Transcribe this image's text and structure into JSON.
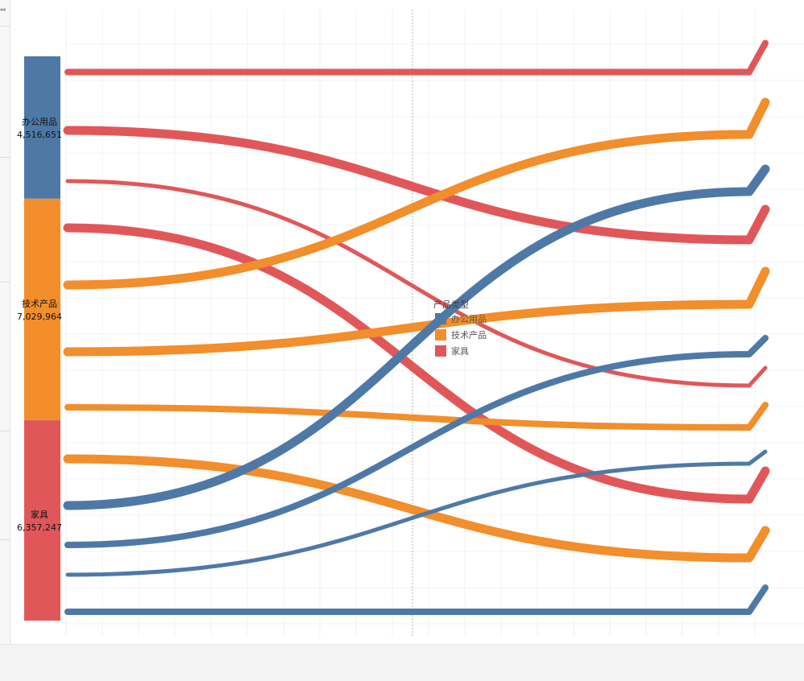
{
  "colors": {
    "office": "#4e79a7",
    "tech": "#f28e2b",
    "furniture": "#e15759"
  },
  "strip_icon": "close-icon",
  "legend": {
    "title": "产品类型",
    "items": [
      {
        "label": "办公用品",
        "color": "#4e79a7"
      },
      {
        "label": "技术产品",
        "color": "#f28e2b"
      },
      {
        "label": "家具",
        "color": "#e15759"
      }
    ]
  },
  "chart_data": {
    "type": "sankey",
    "stacked_bar": [
      {
        "name": "办公用品",
        "value": 4516651,
        "value_label": "4,516,651",
        "color": "#4e79a7"
      },
      {
        "name": "技术产品",
        "value": 7029964,
        "value_label": "7,029,964",
        "color": "#f28e2b"
      },
      {
        "name": "家具",
        "value": 6357247,
        "value_label": "6,357,247",
        "color": "#e15759"
      }
    ],
    "flows": [
      {
        "category": "家具",
        "weight": "medium",
        "start_rank": 1,
        "end_rank": 1
      },
      {
        "category": "家具",
        "weight": "thick",
        "start_rank": 2,
        "end_rank": 4
      },
      {
        "category": "家具",
        "weight": "thin",
        "start_rank": 3,
        "end_rank": 7
      },
      {
        "category": "家具",
        "weight": "thick",
        "start_rank": 4,
        "end_rank": 10
      },
      {
        "category": "技术产品",
        "weight": "thick",
        "start_rank": 5,
        "end_rank": 2
      },
      {
        "category": "技术产品",
        "weight": "thick",
        "start_rank": 6,
        "end_rank": 5
      },
      {
        "category": "技术产品",
        "weight": "medium",
        "start_rank": 7,
        "end_rank": 8
      },
      {
        "category": "技术产品",
        "weight": "thick",
        "start_rank": 8,
        "end_rank": 11
      },
      {
        "category": "办公用品",
        "weight": "thick",
        "start_rank": 9,
        "end_rank": 3
      },
      {
        "category": "办公用品",
        "weight": "medium",
        "start_rank": 10,
        "end_rank": 6
      },
      {
        "category": "办公用品",
        "weight": "thin",
        "start_rank": 11,
        "end_rank": 9
      },
      {
        "category": "办公用品",
        "weight": "medium",
        "start_rank": 12,
        "end_rank": 12
      }
    ],
    "grid": true
  }
}
